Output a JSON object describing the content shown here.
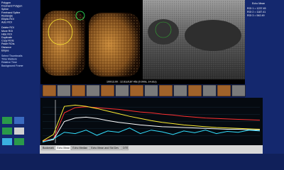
{
  "menu": {
    "tools": [
      "Polygon",
      "Freehand Polygon",
      "Spline",
      "Freehand Spline",
      "Rectangle",
      "Elliptic ROI",
      "Auto ROI"
    ],
    "options": [
      "Delete ROI",
      "Move ROI",
      "Hide ROI",
      "Duplicate",
      "Copy ROIs",
      "Paste ROIs",
      "Distance",
      "Ellipse"
    ],
    "settings": [
      "Select Thumbnails",
      "Time Markers",
      "Relative Time",
      "Background Frame"
    ]
  },
  "status": "100/13.00 : 12.61s/187.45s (0.000s, 14.81s)",
  "roi_panel": {
    "title": "Echo Mean",
    "rows": [
      "ROI 1 = 1237.45",
      "ROI 2 = 1187.41",
      "ROI 3 = 542.49"
    ]
  },
  "tabs": [
    "Bookmark",
    "Echo Mean",
    "Echo Median",
    "Echo Mean and Std Dev",
    "DTE"
  ],
  "chart_data": {
    "type": "line",
    "xlim": [
      0,
      40
    ],
    "ylim": [
      0,
      100
    ],
    "x": [
      0,
      2,
      4,
      6,
      8,
      10,
      12,
      14,
      16,
      18,
      20,
      22,
      24,
      26,
      28,
      30,
      32,
      34,
      36,
      38,
      40
    ],
    "series": [
      {
        "color": "#ff3030",
        "values": [
          5,
          10,
          70,
          82,
          84,
          82,
          80,
          78,
          75,
          72,
          70,
          67,
          65,
          62,
          60,
          58,
          57,
          56,
          55,
          54,
          53
        ]
      },
      {
        "color": "#ffee33",
        "values": [
          5,
          20,
          85,
          88,
          85,
          80,
          74,
          68,
          62,
          57,
          52,
          48,
          45,
          42,
          40,
          38,
          36,
          35,
          34,
          33,
          32
        ]
      },
      {
        "color": "#ffffff",
        "values": [
          3,
          8,
          50,
          58,
          60,
          57,
          52,
          48,
          45,
          42,
          40,
          38,
          37,
          36,
          35,
          34,
          33,
          32,
          32,
          31,
          30
        ]
      },
      {
        "color": "#33e0ff",
        "values": [
          2,
          10,
          25,
          22,
          30,
          18,
          28,
          25,
          35,
          22,
          30,
          26,
          20,
          28,
          24,
          30,
          22,
          27,
          25,
          30,
          28
        ]
      }
    ]
  }
}
